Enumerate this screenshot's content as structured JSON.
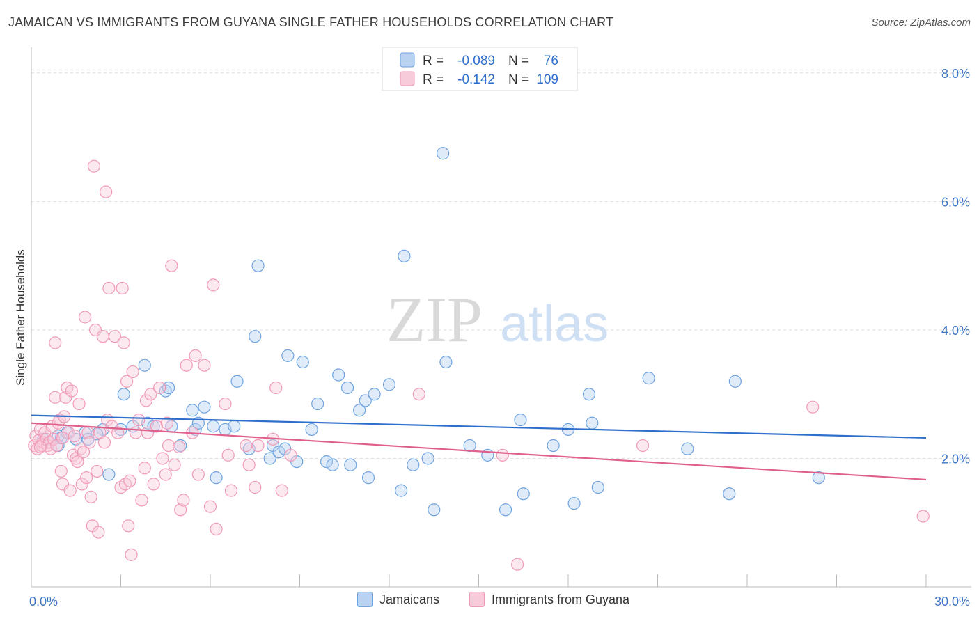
{
  "title": "JAMAICAN VS IMMIGRANTS FROM GUYANA SINGLE FATHER HOUSEHOLDS CORRELATION CHART",
  "source": "Source: ZipAtlas.com",
  "watermark": {
    "zip": "ZIP",
    "atlas": "atlas"
  },
  "chart_data": {
    "type": "scatter",
    "ylabel": "Single Father Households",
    "xlim": [
      0,
      30
    ],
    "ylim": [
      0,
      8.4
    ],
    "x_tick_labels": [
      "0.0%",
      "30.0%"
    ],
    "y_ticks": [
      2,
      4,
      6,
      8
    ],
    "y_tick_labels": [
      "2.0%",
      "4.0%",
      "6.0%",
      "8.0%"
    ],
    "grid": "horizontal dashed",
    "legend_placement": "top-center",
    "stats_legend": [
      {
        "r_label": "R = ",
        "r_value": "-0.089",
        "n_label": "N = ",
        "n_value": "76"
      },
      {
        "r_label": "R = ",
        "r_value": "-0.142",
        "n_label": "N = ",
        "n_value": "109"
      }
    ],
    "series": [
      {
        "name": "Jamaicans",
        "color": "#6fa3e0",
        "fill": "#b9d2f2",
        "line_color": "#2e6fcc",
        "trend": {
          "x": [
            0,
            30
          ],
          "y": [
            2.67,
            2.32
          ]
        },
        "points": [
          [
            0.4,
            2.3
          ],
          [
            0.6,
            2.25
          ],
          [
            0.9,
            2.35
          ],
          [
            1.2,
            2.4
          ],
          [
            1.5,
            2.3
          ],
          [
            1.8,
            2.4
          ],
          [
            2.4,
            2.45
          ],
          [
            2.6,
            1.75
          ],
          [
            3.0,
            2.45
          ],
          [
            3.1,
            3.0
          ],
          [
            3.4,
            2.5
          ],
          [
            3.8,
            3.45
          ],
          [
            3.9,
            2.55
          ],
          [
            4.1,
            2.5
          ],
          [
            4.5,
            3.05
          ],
          [
            4.6,
            3.1
          ],
          [
            4.7,
            2.5
          ],
          [
            5.0,
            2.2
          ],
          [
            5.4,
            2.75
          ],
          [
            5.5,
            2.45
          ],
          [
            5.6,
            2.55
          ],
          [
            5.8,
            2.8
          ],
          [
            6.1,
            2.5
          ],
          [
            6.2,
            1.7
          ],
          [
            6.5,
            2.45
          ],
          [
            6.8,
            2.5
          ],
          [
            6.9,
            3.2
          ],
          [
            7.3,
            2.15
          ],
          [
            7.5,
            3.9
          ],
          [
            7.6,
            5.0
          ],
          [
            8.0,
            2.0
          ],
          [
            8.1,
            2.2
          ],
          [
            8.3,
            2.1
          ],
          [
            8.5,
            2.15
          ],
          [
            8.6,
            3.6
          ],
          [
            8.9,
            1.95
          ],
          [
            9.1,
            3.5
          ],
          [
            9.4,
            2.45
          ],
          [
            9.6,
            2.85
          ],
          [
            9.9,
            1.95
          ],
          [
            10.1,
            1.9
          ],
          [
            10.3,
            3.3
          ],
          [
            10.6,
            3.1
          ],
          [
            10.7,
            1.9
          ],
          [
            11.0,
            2.75
          ],
          [
            11.2,
            2.9
          ],
          [
            11.3,
            1.7
          ],
          [
            11.5,
            3.0
          ],
          [
            12.0,
            3.15
          ],
          [
            12.4,
            1.5
          ],
          [
            12.5,
            5.15
          ],
          [
            12.8,
            1.9
          ],
          [
            13.3,
            2.0
          ],
          [
            13.5,
            1.2
          ],
          [
            13.8,
            6.75
          ],
          [
            13.9,
            3.5
          ],
          [
            14.7,
            2.2
          ],
          [
            15.3,
            2.05
          ],
          [
            15.9,
            1.2
          ],
          [
            16.4,
            2.6
          ],
          [
            16.5,
            1.45
          ],
          [
            17.5,
            2.2
          ],
          [
            18.0,
            2.45
          ],
          [
            18.2,
            1.3
          ],
          [
            18.7,
            3.0
          ],
          [
            18.8,
            2.55
          ],
          [
            19.0,
            1.55
          ],
          [
            20.7,
            3.25
          ],
          [
            22.0,
            2.15
          ],
          [
            23.4,
            1.45
          ],
          [
            23.6,
            3.2
          ],
          [
            26.4,
            1.7
          ],
          [
            0.9,
            2.2
          ],
          [
            1.0,
            2.32
          ],
          [
            1.9,
            2.3
          ],
          [
            2.2,
            2.38
          ]
        ]
      },
      {
        "name": "Immigrants from Guyana",
        "color": "#f09ab7",
        "fill": "#f8cbdb",
        "line_color": "#e0608c",
        "trend": {
          "x": [
            0,
            30
          ],
          "y": [
            2.55,
            1.67
          ]
        },
        "points": [
          [
            0.1,
            2.2
          ],
          [
            0.15,
            2.35
          ],
          [
            0.2,
            2.15
          ],
          [
            0.25,
            2.28
          ],
          [
            0.3,
            2.45
          ],
          [
            0.35,
            2.2
          ],
          [
            0.4,
            2.25
          ],
          [
            0.45,
            2.4
          ],
          [
            0.5,
            2.3
          ],
          [
            0.55,
            2.2
          ],
          [
            0.6,
            2.25
          ],
          [
            0.65,
            2.15
          ],
          [
            0.7,
            2.5
          ],
          [
            0.75,
            2.3
          ],
          [
            0.8,
            2.95
          ],
          [
            0.85,
            2.2
          ],
          [
            0.9,
            2.55
          ],
          [
            0.8,
            3.8
          ],
          [
            0.95,
            2.6
          ],
          [
            1.0,
            1.8
          ],
          [
            1.05,
            1.6
          ],
          [
            1.1,
            2.65
          ],
          [
            1.15,
            2.95
          ],
          [
            1.2,
            3.1
          ],
          [
            1.25,
            2.4
          ],
          [
            1.3,
            1.5
          ],
          [
            1.35,
            3.05
          ],
          [
            1.4,
            2.05
          ],
          [
            1.45,
            2.35
          ],
          [
            1.5,
            2.0
          ],
          [
            1.55,
            1.95
          ],
          [
            1.6,
            2.85
          ],
          [
            1.65,
            2.15
          ],
          [
            1.7,
            1.6
          ],
          [
            1.75,
            2.1
          ],
          [
            1.8,
            4.2
          ],
          [
            1.85,
            1.7
          ],
          [
            1.9,
            2.4
          ],
          [
            1.95,
            2.25
          ],
          [
            2.0,
            1.4
          ],
          [
            2.05,
            0.95
          ],
          [
            2.1,
            6.55
          ],
          [
            2.15,
            4.0
          ],
          [
            2.2,
            1.8
          ],
          [
            2.25,
            0.85
          ],
          [
            2.3,
            2.4
          ],
          [
            2.4,
            3.9
          ],
          [
            2.45,
            2.25
          ],
          [
            2.5,
            6.15
          ],
          [
            2.55,
            2.6
          ],
          [
            2.6,
            4.65
          ],
          [
            2.7,
            2.5
          ],
          [
            2.8,
            3.9
          ],
          [
            2.9,
            2.4
          ],
          [
            3.0,
            1.55
          ],
          [
            3.05,
            4.65
          ],
          [
            3.1,
            3.8
          ],
          [
            3.15,
            1.6
          ],
          [
            3.2,
            3.2
          ],
          [
            3.3,
            1.65
          ],
          [
            3.25,
            0.95
          ],
          [
            3.35,
            0.5
          ],
          [
            3.4,
            3.35
          ],
          [
            3.5,
            2.4
          ],
          [
            3.6,
            2.6
          ],
          [
            3.7,
            1.35
          ],
          [
            3.8,
            1.85
          ],
          [
            3.85,
            2.9
          ],
          [
            3.9,
            2.4
          ],
          [
            4.0,
            3.0
          ],
          [
            4.1,
            1.6
          ],
          [
            4.2,
            2.5
          ],
          [
            4.3,
            3.1
          ],
          [
            4.4,
            2.0
          ],
          [
            4.5,
            1.75
          ],
          [
            4.55,
            2.55
          ],
          [
            4.6,
            2.2
          ],
          [
            4.7,
            5.0
          ],
          [
            4.8,
            1.9
          ],
          [
            5.0,
            1.2
          ],
          [
            5.1,
            1.35
          ],
          [
            5.2,
            3.45
          ],
          [
            5.4,
            2.4
          ],
          [
            5.5,
            3.6
          ],
          [
            5.6,
            1.75
          ],
          [
            5.8,
            3.45
          ],
          [
            6.0,
            1.25
          ],
          [
            6.1,
            4.7
          ],
          [
            6.2,
            0.9
          ],
          [
            6.5,
            2.85
          ],
          [
            6.6,
            2.05
          ],
          [
            6.7,
            1.5
          ],
          [
            7.2,
            2.2
          ],
          [
            7.3,
            1.9
          ],
          [
            7.5,
            1.55
          ],
          [
            7.6,
            2.2
          ],
          [
            8.1,
            2.3
          ],
          [
            8.2,
            3.1
          ],
          [
            8.4,
            1.5
          ],
          [
            8.7,
            2.05
          ],
          [
            13.0,
            3.0
          ],
          [
            15.8,
            2.05
          ],
          [
            16.3,
            0.35
          ],
          [
            20.5,
            2.2
          ],
          [
            26.2,
            2.8
          ],
          [
            29.9,
            1.1
          ],
          [
            0.3,
            2.18
          ],
          [
            1.05,
            2.32
          ],
          [
            4.95,
            2.18
          ]
        ]
      }
    ]
  }
}
